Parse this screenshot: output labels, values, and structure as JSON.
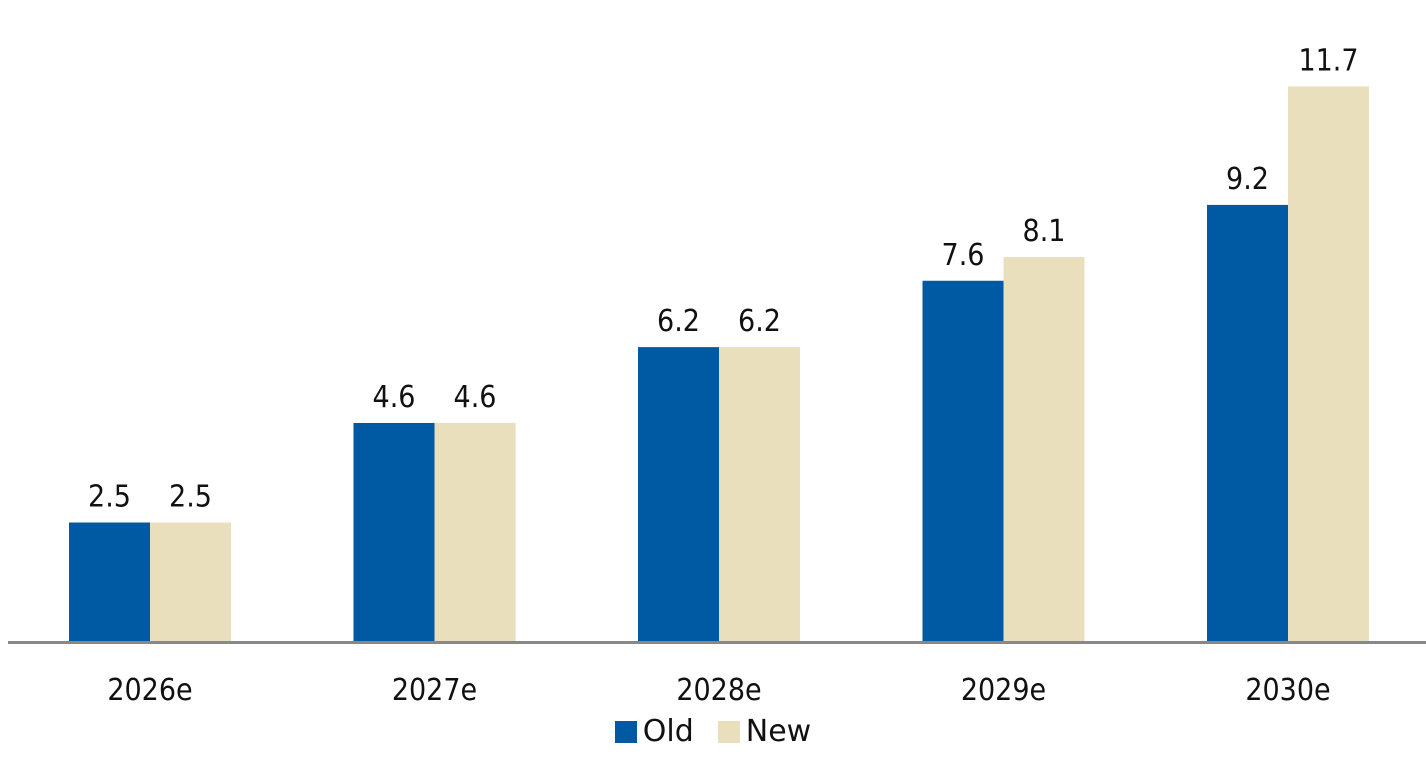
{
  "chart_data": {
    "type": "bar",
    "categories": [
      "2026e",
      "2027e",
      "2028e",
      "2029e",
      "2030e"
    ],
    "series": [
      {
        "name": "Old",
        "values": [
          2.5,
          4.6,
          6.2,
          7.6,
          9.2
        ],
        "color": "#005aa3"
      },
      {
        "name": "New",
        "values": [
          2.5,
          4.6,
          6.2,
          8.1,
          11.7
        ],
        "color": "#e9dfbd"
      }
    ],
    "title": "",
    "xlabel": "",
    "ylabel": "",
    "ylim": [
      0,
      13
    ],
    "grid": false,
    "legend": "bottom-center",
    "axis_color": "#888888"
  }
}
